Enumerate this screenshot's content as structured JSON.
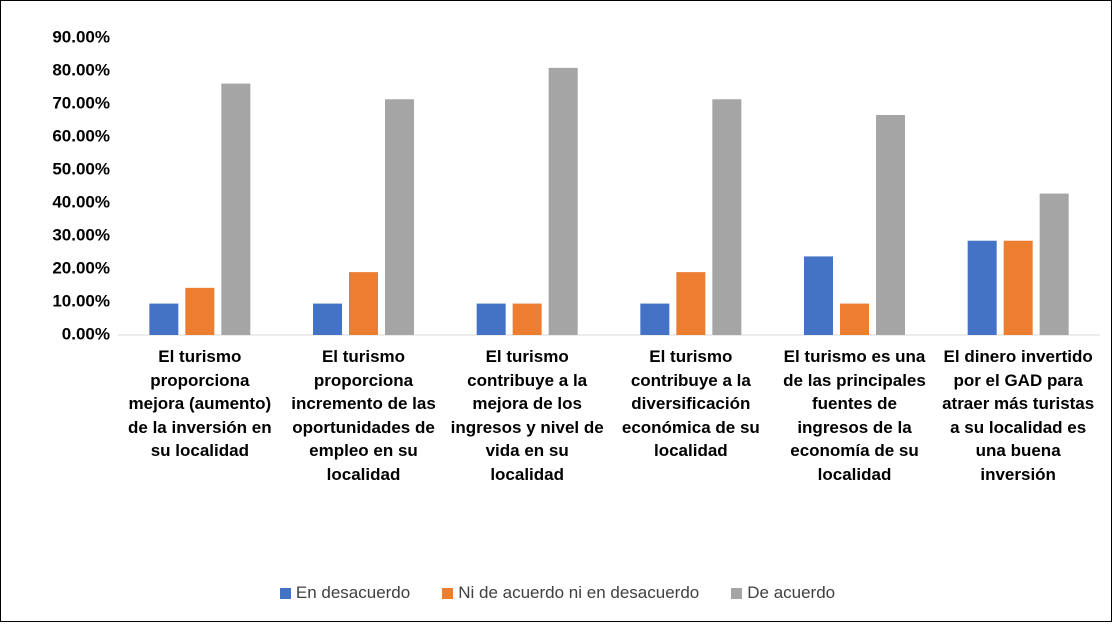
{
  "chart_data": {
    "type": "bar",
    "categories": [
      "El turismo proporciona mejora (aumento) de la inversión en su localidad",
      "El turismo proporciona incremento de las oportunidades de empleo en su localidad",
      "El turismo contribuye a la mejora de los ingresos y nivel de vida en su localidad",
      "El turismo contribuye a la diversificación económica de su localidad",
      "El turismo es una de las principales fuentes de ingresos de la economía de su localidad",
      "El dinero invertido por el GAD para atraer más turistas a su localidad es una buena inversión"
    ],
    "series": [
      {
        "name": "En desacuerdo",
        "color": "#4472c4",
        "values": [
          9.52,
          9.52,
          9.52,
          9.52,
          23.81,
          28.57
        ]
      },
      {
        "name": "Ni de acuerdo ni en desacuerdo",
        "color": "#ed7d31",
        "values": [
          14.29,
          19.05,
          9.52,
          19.05,
          9.52,
          28.57
        ]
      },
      {
        "name": "De acuerdo",
        "color": "#a5a5a5",
        "values": [
          76.19,
          71.43,
          80.95,
          71.43,
          66.67,
          42.86
        ]
      }
    ],
    "ylim": [
      0,
      90
    ],
    "yticks": [
      {
        "value": 0,
        "label": "0.00%"
      },
      {
        "value": 10,
        "label": "10.00%"
      },
      {
        "value": 20,
        "label": "20.00%"
      },
      {
        "value": 30,
        "label": "30.00%"
      },
      {
        "value": 40,
        "label": "40.00%"
      },
      {
        "value": 50,
        "label": "50.00%"
      },
      {
        "value": 60,
        "label": "60.00%"
      },
      {
        "value": 70,
        "label": "70.00%"
      },
      {
        "value": 80,
        "label": "80.00%"
      },
      {
        "value": 90,
        "label": "90.00%"
      }
    ],
    "grid": false,
    "legend": "bottom"
  }
}
